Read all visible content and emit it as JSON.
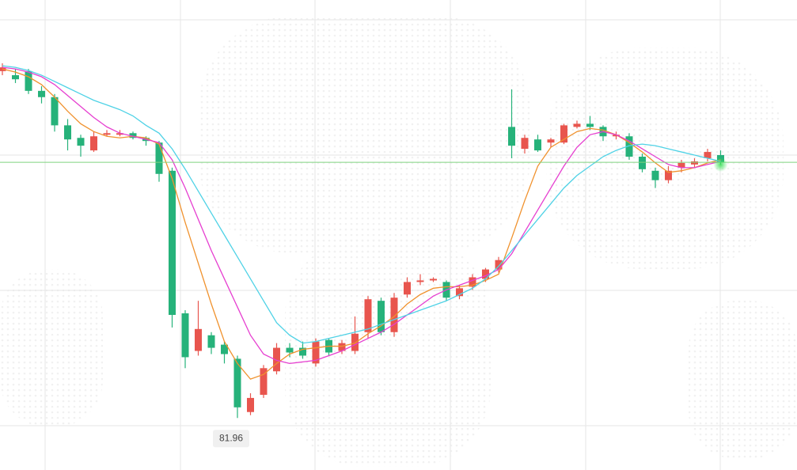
{
  "chart_data": {
    "type": "candlestick",
    "ylim": [
      80.3,
      95.3
    ],
    "up_color": "#e8554e",
    "down_color": "#26b27a",
    "open": [
      93.03,
      92.9,
      93.03,
      92.4,
      92.2,
      91.3,
      90.9,
      90.5,
      91.0,
      91.0,
      91.05,
      90.9,
      90.75,
      89.85,
      85.3,
      84.1,
      84.6,
      84.3,
      83.85,
      82.15,
      82.7,
      83.45,
      84.2,
      84.2,
      83.7,
      84.45,
      84.1,
      84.1,
      84.7,
      85.7,
      84.7,
      85.9,
      86.3,
      86.35,
      86.3,
      85.85,
      86.15,
      86.4,
      86.7,
      91.25,
      90.55,
      90.85,
      90.75,
      90.75,
      91.25,
      91.35,
      91.25,
      90.95,
      90.95,
      90.3,
      89.85,
      89.55,
      89.95,
      90.05,
      90.25,
      90.35
    ],
    "high": [
      93.28,
      93.1,
      93.1,
      92.55,
      92.3,
      91.5,
      91.0,
      91.1,
      91.15,
      91.15,
      91.1,
      90.95,
      90.8,
      89.95,
      85.4,
      85.7,
      84.7,
      84.4,
      83.95,
      82.75,
      83.65,
      84.35,
      84.35,
      84.4,
      84.5,
      84.5,
      84.45,
      85.2,
      85.85,
      85.8,
      85.95,
      86.45,
      86.55,
      86.45,
      86.35,
      86.2,
      86.55,
      86.75,
      87.1,
      92.45,
      91.0,
      91.0,
      90.9,
      91.35,
      91.45,
      91.6,
      91.3,
      91.1,
      91.05,
      90.4,
      89.95,
      90.0,
      90.2,
      90.25,
      90.55,
      90.5
    ],
    "low": [
      92.9,
      92.65,
      92.3,
      92.0,
      91.1,
      90.5,
      90.3,
      90.45,
      90.95,
      90.95,
      90.85,
      90.65,
      89.5,
      84.85,
      83.55,
      83.95,
      84.0,
      83.7,
      81.96,
      82.05,
      82.6,
      83.35,
      83.9,
      83.85,
      83.6,
      83.95,
      84.0,
      84.0,
      84.5,
      84.6,
      84.55,
      85.8,
      86.2,
      86.3,
      85.7,
      85.75,
      86.05,
      86.3,
      86.6,
      90.25,
      90.4,
      90.45,
      90.6,
      90.7,
      91.2,
      91.15,
      90.8,
      90.85,
      90.2,
      89.8,
      89.3,
      89.45,
      89.8,
      89.95,
      90.15,
      90.05
    ],
    "close": [
      93.15,
      92.77,
      92.4,
      92.2,
      91.3,
      90.85,
      90.65,
      90.95,
      91.05,
      91.05,
      90.9,
      90.8,
      89.75,
      85.25,
      83.9,
      84.8,
      84.2,
      84.0,
      82.3,
      82.6,
      83.55,
      84.2,
      84.05,
      83.95,
      84.4,
      84.05,
      84.35,
      84.65,
      85.75,
      84.7,
      85.8,
      86.3,
      86.35,
      86.4,
      85.8,
      86.1,
      86.45,
      86.7,
      87.0,
      90.65,
      90.9,
      90.5,
      90.85,
      91.3,
      91.35,
      91.25,
      90.95,
      91.0,
      90.3,
      89.9,
      89.55,
      89.85,
      90.1,
      90.15,
      90.45,
      90.12
    ],
    "moving_averages": [
      {
        "color": "#f0922e",
        "values": [
          93.1,
          93.0,
          92.85,
          92.6,
          92.2,
          91.75,
          91.35,
          91.1,
          90.95,
          90.9,
          90.95,
          90.9,
          90.7,
          89.6,
          88.2,
          86.9,
          85.6,
          84.4,
          83.7,
          83.2,
          83.35,
          83.7,
          84.0,
          84.15,
          84.2,
          84.25,
          84.25,
          84.35,
          84.65,
          84.9,
          85.2,
          85.6,
          85.9,
          86.1,
          86.15,
          86.15,
          86.2,
          86.35,
          86.55,
          87.7,
          88.9,
          90.0,
          90.6,
          90.85,
          91.1,
          91.2,
          91.15,
          91.0,
          90.75,
          90.45,
          90.1,
          89.8,
          89.85,
          89.95,
          90.1,
          90.2
        ]
      },
      {
        "color": "#e63fd0",
        "values": [
          93.15,
          93.1,
          93.0,
          92.85,
          92.6,
          92.25,
          91.9,
          91.55,
          91.25,
          91.05,
          90.95,
          90.85,
          90.75,
          90.2,
          89.3,
          88.3,
          87.3,
          86.4,
          85.5,
          84.6,
          84.0,
          83.8,
          83.7,
          83.75,
          83.8,
          83.95,
          84.1,
          84.3,
          84.5,
          84.7,
          84.95,
          85.25,
          85.55,
          85.85,
          86.05,
          86.2,
          86.35,
          86.5,
          86.7,
          87.2,
          87.9,
          88.6,
          89.3,
          90.0,
          90.6,
          91.0,
          91.1,
          91.0,
          90.8,
          90.55,
          90.3,
          90.05,
          89.95,
          89.95,
          90.05,
          90.15
        ]
      },
      {
        "color": "#4fd2e6",
        "values": [
          93.2,
          93.15,
          93.05,
          92.9,
          92.7,
          92.5,
          92.3,
          92.1,
          91.95,
          91.8,
          91.6,
          91.3,
          91.05,
          90.55,
          89.9,
          89.2,
          88.5,
          87.8,
          87.1,
          86.4,
          85.7,
          85.0,
          84.6,
          84.35,
          84.4,
          84.5,
          84.6,
          84.7,
          84.8,
          84.95,
          85.1,
          85.25,
          85.4,
          85.55,
          85.7,
          85.9,
          86.1,
          86.4,
          86.8,
          87.3,
          87.8,
          88.3,
          88.8,
          89.3,
          89.7,
          90.0,
          90.3,
          90.5,
          90.65,
          90.7,
          90.65,
          90.55,
          90.45,
          90.35,
          90.25,
          90.15
        ]
      }
    ],
    "last_price": 90.12,
    "last_price_color": "#7fd37f"
  }
}
